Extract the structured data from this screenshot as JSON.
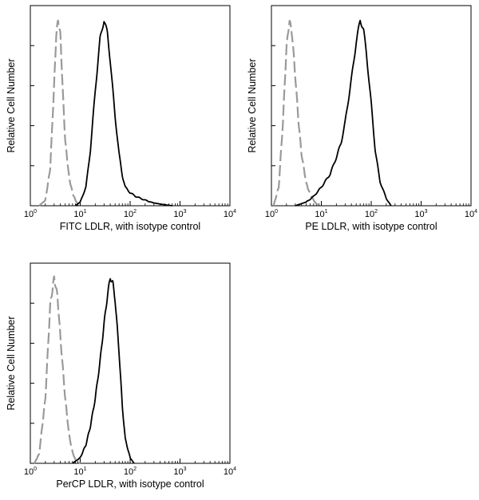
{
  "chart_data": [
    {
      "type": "line",
      "xscale": "log",
      "xlim": [
        1,
        10000
      ],
      "x_ticks": [
        {
          "base": "10",
          "exp": "0"
        },
        {
          "base": "10",
          "exp": "1"
        },
        {
          "base": "10",
          "exp": "2"
        },
        {
          "base": "10",
          "exp": "3"
        },
        {
          "base": "10",
          "exp": "4"
        }
      ],
      "xlabel": "FITC  LDLR,  with isotype control",
      "ylabel": "Relative Cell Number",
      "ylim": [
        0,
        1
      ],
      "grid": false,
      "series": [
        {
          "style": "dashed",
          "color": "#9a9a9a",
          "x": [
            1.5,
            2,
            2.5,
            3,
            3.3,
            3.6,
            4,
            4.5,
            5,
            6,
            7,
            8,
            9,
            11
          ],
          "values": [
            0,
            0.03,
            0.2,
            0.65,
            0.92,
            1.0,
            0.92,
            0.6,
            0.35,
            0.15,
            0.07,
            0.03,
            0.01,
            0
          ]
        },
        {
          "style": "solid",
          "color": "#000000",
          "x": [
            8,
            10,
            13,
            16,
            20,
            25,
            30,
            35,
            40,
            50,
            60,
            70,
            80,
            100,
            130,
            200,
            300,
            500,
            700
          ],
          "values": [
            0,
            0.02,
            0.1,
            0.3,
            0.62,
            0.9,
            1.0,
            0.93,
            0.78,
            0.48,
            0.28,
            0.16,
            0.1,
            0.07,
            0.05,
            0.03,
            0.015,
            0.005,
            0
          ]
        }
      ]
    },
    {
      "type": "line",
      "xscale": "log",
      "xlim": [
        1,
        10000
      ],
      "x_ticks": [
        {
          "base": "10",
          "exp": "0"
        },
        {
          "base": "10",
          "exp": "1"
        },
        {
          "base": "10",
          "exp": "2"
        },
        {
          "base": "10",
          "exp": "3"
        },
        {
          "base": "10",
          "exp": "4"
        }
      ],
      "xlabel": "PE  LDLR,  with isotype control",
      "ylabel": "Relative Cell Number",
      "ylim": [
        0,
        1
      ],
      "grid": false,
      "series": [
        {
          "style": "dashed",
          "color": "#9a9a9a",
          "x": [
            1.1,
            1.4,
            1.7,
            2,
            2.3,
            2.6,
            3,
            3.5,
            4,
            5,
            6,
            7,
            8,
            10
          ],
          "values": [
            0,
            0.1,
            0.45,
            0.85,
            1.0,
            0.92,
            0.7,
            0.45,
            0.28,
            0.12,
            0.06,
            0.03,
            0.01,
            0
          ]
        },
        {
          "style": "solid",
          "color": "#000000",
          "x": [
            3,
            5,
            7,
            10,
            15,
            20,
            25,
            30,
            40,
            50,
            60,
            70,
            80,
            100,
            120,
            150,
            200,
            250
          ],
          "values": [
            0,
            0.02,
            0.05,
            0.1,
            0.17,
            0.26,
            0.34,
            0.45,
            0.68,
            0.88,
            1.0,
            0.95,
            0.82,
            0.55,
            0.3,
            0.13,
            0.04,
            0
          ]
        }
      ]
    },
    {
      "type": "line",
      "xscale": "log",
      "xlim": [
        1,
        10000
      ],
      "x_ticks": [
        {
          "base": "10",
          "exp": "0"
        },
        {
          "base": "10",
          "exp": "1"
        },
        {
          "base": "10",
          "exp": "2"
        },
        {
          "base": "10",
          "exp": "3"
        },
        {
          "base": "10",
          "exp": "4"
        }
      ],
      "xlabel": "PerCP LDLR, with isotype control",
      "ylabel": "Relative Cell Number",
      "ylim": [
        0,
        1
      ],
      "grid": false,
      "series": [
        {
          "style": "dashed",
          "color": "#9a9a9a",
          "x": [
            1.2,
            1.5,
            2,
            2.5,
            3,
            3.5,
            4,
            5,
            6,
            7,
            8,
            10
          ],
          "values": [
            0,
            0.05,
            0.35,
            0.85,
            1.0,
            0.9,
            0.68,
            0.35,
            0.15,
            0.06,
            0.02,
            0
          ]
        },
        {
          "style": "solid",
          "color": "#000000",
          "x": [
            7,
            10,
            13,
            16,
            20,
            25,
            30,
            35,
            40,
            45,
            50,
            60,
            70,
            80,
            100,
            120
          ],
          "values": [
            0,
            0.03,
            0.1,
            0.2,
            0.35,
            0.55,
            0.75,
            0.9,
            1.0,
            0.97,
            0.88,
            0.6,
            0.3,
            0.13,
            0.03,
            0
          ]
        }
      ]
    }
  ]
}
